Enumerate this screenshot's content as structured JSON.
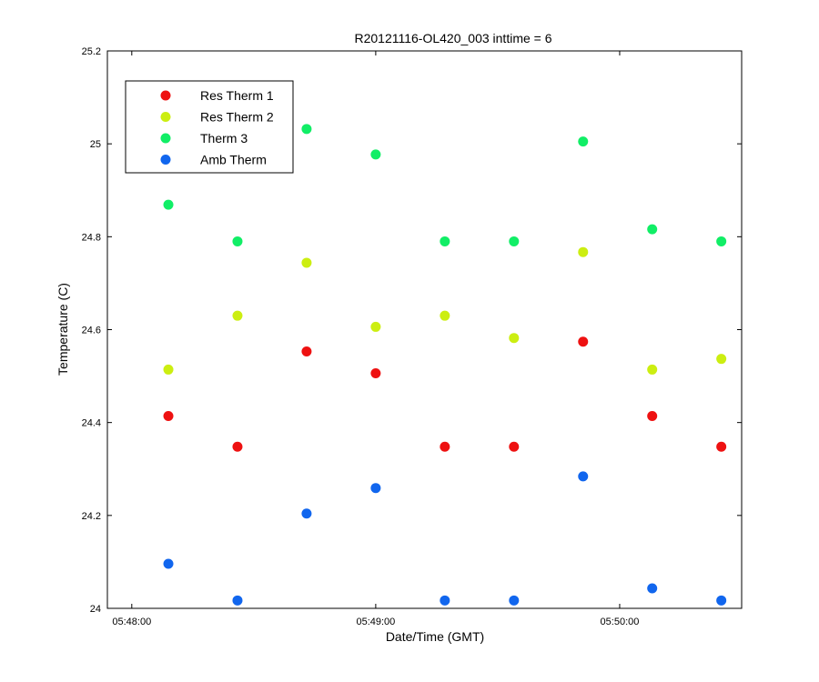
{
  "chart_data": {
    "type": "scatter",
    "title": "R20121116-OL420_003 inttime = 6",
    "xlabel": "Date/Time (GMT)",
    "ylabel": "Temperature (C)",
    "x_unit": "time (HH:MM:SS GMT)",
    "xlim": [
      "05:47:54",
      "05:50:30"
    ],
    "ylim": [
      24,
      25.2
    ],
    "x_ticks": [
      "05:48:00",
      "05:49:00",
      "05:50:00"
    ],
    "y_ticks": [
      "24",
      "24.2",
      "24.4",
      "24.6",
      "24.8",
      "25",
      "25.2"
    ],
    "grid": false,
    "legend_position": "top-left",
    "x": [
      "05:48:09",
      "05:48:26",
      "05:48:43",
      "05:49:00",
      "05:49:17",
      "05:49:34",
      "05:49:51",
      "05:50:08",
      "05:50:25"
    ],
    "series": [
      {
        "name": "Res Therm 1",
        "color": "#ee1111",
        "values": [
          24.414,
          24.348,
          24.553,
          24.506,
          24.348,
          24.348,
          24.574,
          24.414,
          24.348
        ]
      },
      {
        "name": "Res Therm 2",
        "color": "#ccee11",
        "values": [
          24.514,
          24.63,
          24.744,
          24.606,
          24.63,
          24.582,
          24.767,
          24.514,
          24.537
        ]
      },
      {
        "name": "Therm 3",
        "color": "#11ee66",
        "values": [
          24.869,
          24.79,
          25.032,
          24.977,
          24.79,
          24.79,
          25.005,
          24.816,
          24.79
        ]
      },
      {
        "name": "Amb Therm",
        "color": "#1166ee",
        "values": [
          24.096,
          24.017,
          24.204,
          24.259,
          24.017,
          24.017,
          24.284,
          24.043,
          24.017
        ]
      }
    ]
  }
}
